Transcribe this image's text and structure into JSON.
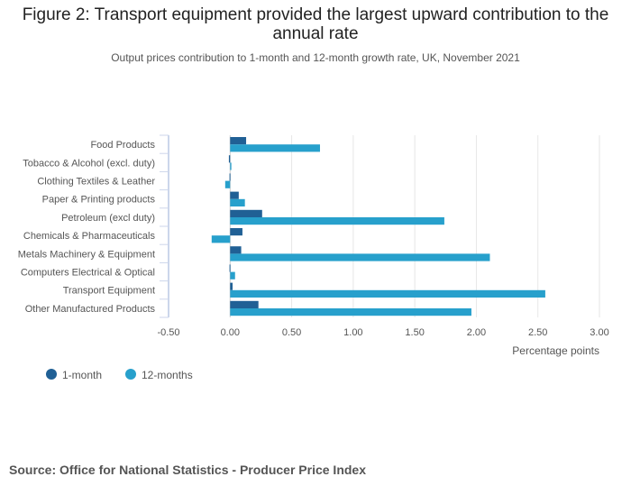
{
  "chart_data": {
    "type": "bar",
    "orientation": "horizontal",
    "title": "Figure 2: Transport equipment provided the largest upward contribution to the annual rate",
    "subtitle": "Output prices contribution to 1-month and 12-month growth rate, UK, November 2021",
    "categories": [
      "Food Products",
      "Tobacco & Alcohol (excl. duty)",
      "Clothing Textiles & Leather",
      "Paper & Printing products",
      "Petroleum (excl duty)",
      "Chemicals & Pharmaceuticals",
      "Metals Machinery & Equipment",
      "Computers Electrical & Optical",
      "Transport Equipment",
      "Other Manufactured Products"
    ],
    "series": [
      {
        "name": "1-month",
        "color": "#206095",
        "values": [
          0.13,
          -0.01,
          -0.005,
          0.07,
          0.26,
          0.1,
          0.09,
          -0.005,
          0.02,
          0.23
        ]
      },
      {
        "name": "12-months",
        "color": "#27a0cc",
        "values": [
          0.73,
          0.01,
          -0.04,
          0.12,
          1.74,
          -0.15,
          2.11,
          0.04,
          2.56,
          1.96
        ]
      }
    ],
    "xlabel": "Percentage points",
    "xlim": [
      -0.5,
      3.0
    ],
    "xticks": [
      "-0.50",
      "0.00",
      "0.50",
      "1.00",
      "1.50",
      "2.00",
      "2.50",
      "3.00"
    ],
    "tick_values": [
      -0.5,
      0,
      0.5,
      1,
      1.5,
      2,
      2.5,
      3
    ],
    "grid": true,
    "legend": "bottom-left"
  },
  "source": "Source: Office for National Statistics - Producer Price Index"
}
